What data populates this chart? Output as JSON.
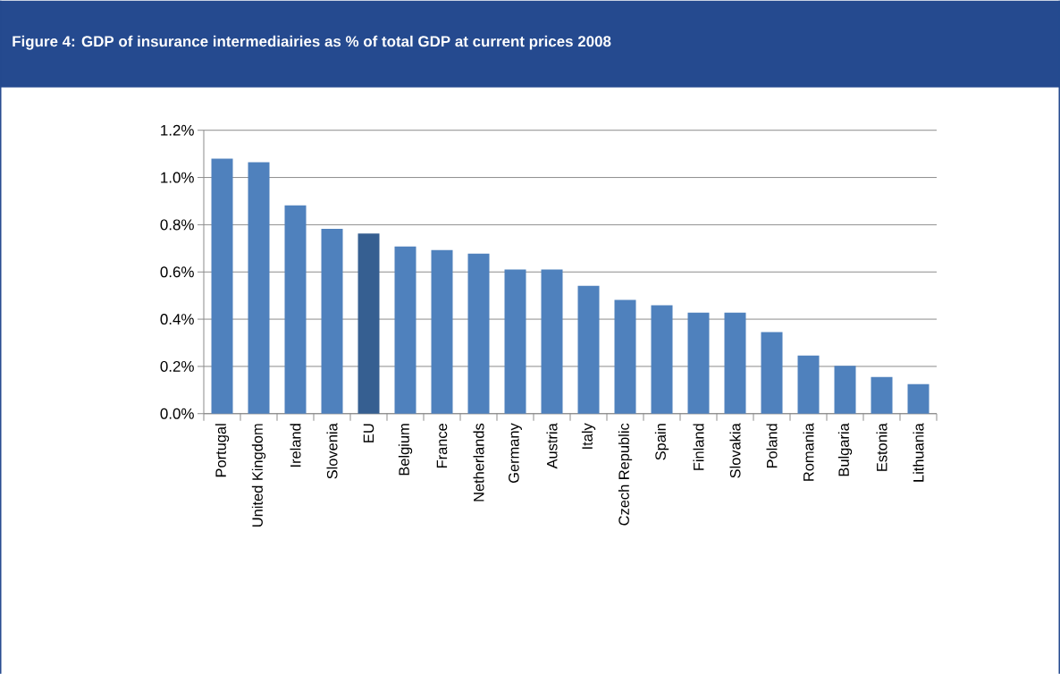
{
  "chart_data": {
    "type": "bar",
    "title": "Figure 4:  GDP of insurance intermediairies as % of total GDP at current prices 2008",
    "categories": [
      "Portugal",
      "United Kingdom",
      "Ireland",
      "Slovenia",
      "EU",
      "Belgium",
      "France",
      "Netherlands",
      "Germany",
      "Austria",
      "Italy",
      "Czech Republic",
      "Spain",
      "Finland",
      "Slovakia",
      "Poland",
      "Romania",
      "Bulgaria",
      "Estonia",
      "Lithuania"
    ],
    "values": [
      1.08,
      1.065,
      0.882,
      0.783,
      0.763,
      0.708,
      0.693,
      0.678,
      0.61,
      0.61,
      0.541,
      0.482,
      0.459,
      0.428,
      0.428,
      0.345,
      0.246,
      0.202,
      0.155,
      0.125
    ],
    "colors": [
      "#4f81bd",
      "#4f81bd",
      "#4f81bd",
      "#4f81bd",
      "#365f91",
      "#4f81bd",
      "#4f81bd",
      "#4f81bd",
      "#4f81bd",
      "#4f81bd",
      "#4f81bd",
      "#4f81bd",
      "#4f81bd",
      "#4f81bd",
      "#4f81bd",
      "#4f81bd",
      "#4f81bd",
      "#4f81bd",
      "#4f81bd",
      "#4f81bd"
    ],
    "ylim": [
      0,
      1.2
    ],
    "yticks": [
      {
        "value": 0,
        "label": "0.0%"
      },
      {
        "value": 0.2,
        "label": "0.2%"
      },
      {
        "value": 0.4,
        "label": "0.4%"
      },
      {
        "value": 0.6,
        "label": "0.6%"
      },
      {
        "value": 0.8,
        "label": "0.8%"
      },
      {
        "value": 1.0,
        "label": "1.0%"
      },
      {
        "value": 1.2,
        "label": "1.2%"
      }
    ],
    "grid": "y"
  }
}
